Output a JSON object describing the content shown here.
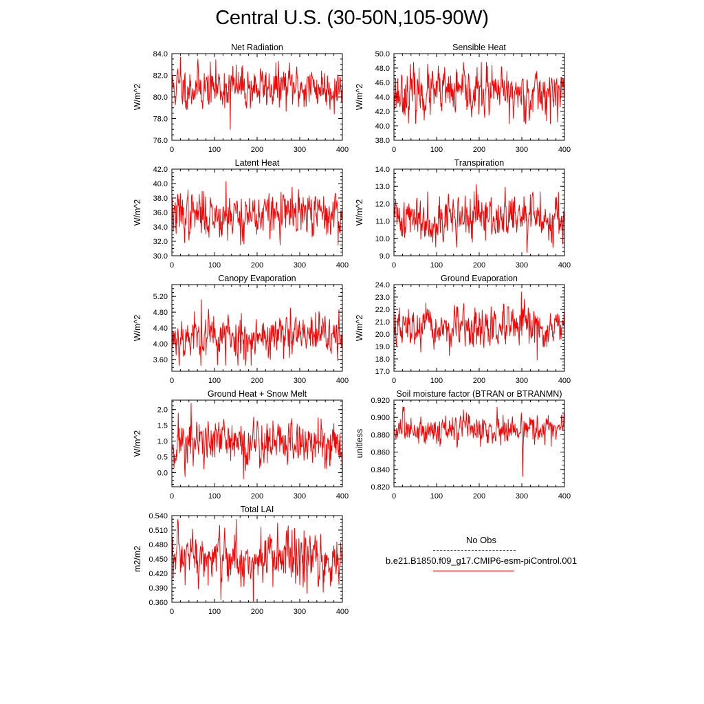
{
  "title": "Central U.S. (30-50N,105-90W)",
  "colors": {
    "model": "#ff0000",
    "obs": "#3b3b6b"
  },
  "legend": {
    "obs_label": "No Obs",
    "model_label": "b.e21.B1850.f09_g17.CMIP6-esm-piControl.001"
  },
  "chart_data": [
    {
      "type": "line",
      "title": "Net Radiation",
      "ylabel": "W/m^2",
      "xlim": [
        0,
        400
      ],
      "ylim": [
        76.0,
        84.0
      ],
      "xticks": [
        0,
        100,
        200,
        300,
        400
      ],
      "yticks": [
        "76.0",
        "78.0",
        "80.0",
        "82.0",
        "84.0"
      ],
      "series": [
        {
          "mean": 80.9,
          "amp": 0.95,
          "min": 77.0,
          "max": 83.7,
          "n": 400,
          "seed": 11
        }
      ]
    },
    {
      "type": "line",
      "title": "Sensible Heat",
      "ylabel": "W/m^2",
      "xlim": [
        0,
        400
      ],
      "ylim": [
        38.0,
        50.0
      ],
      "xticks": [
        0,
        100,
        200,
        300,
        400
      ],
      "yticks": [
        "38.0",
        "40.0",
        "42.0",
        "44.0",
        "46.0",
        "48.0",
        "50.0"
      ],
      "series": [
        {
          "mean": 44.5,
          "amp": 1.55,
          "min": 40.3,
          "max": 48.8,
          "n": 400,
          "seed": 23
        }
      ]
    },
    {
      "type": "line",
      "title": "Latent Heat",
      "ylabel": "W/m^2",
      "xlim": [
        0,
        400
      ],
      "ylim": [
        30.0,
        42.0
      ],
      "xticks": [
        0,
        100,
        200,
        300,
        400
      ],
      "yticks": [
        "30.0",
        "32.0",
        "34.0",
        "36.0",
        "38.0",
        "40.0",
        "42.0"
      ],
      "series": [
        {
          "mean": 35.7,
          "amp": 1.5,
          "min": 31.5,
          "max": 40.3,
          "n": 400,
          "seed": 37
        }
      ]
    },
    {
      "type": "line",
      "title": "Transpiration",
      "ylabel": "W/m^2",
      "xlim": [
        0,
        400
      ],
      "ylim": [
        9.0,
        14.0
      ],
      "xticks": [
        0,
        100,
        200,
        300,
        400
      ],
      "yticks": [
        "9.0",
        "10.0",
        "11.0",
        "12.0",
        "13.0",
        "14.0"
      ],
      "series": [
        {
          "mean": 11.2,
          "amp": 0.62,
          "min": 9.2,
          "max": 13.1,
          "n": 400,
          "seed": 41
        }
      ]
    },
    {
      "type": "line",
      "title": "Canopy Evaporation",
      "ylabel": "W/m^2",
      "xlim": [
        0,
        400
      ],
      "ylim": [
        3.3,
        5.5
      ],
      "xticks": [
        0,
        100,
        200,
        300,
        400
      ],
      "yticks": [
        "3.60",
        "4.00",
        "4.40",
        "4.80",
        "5.20"
      ],
      "ytick_values": [
        3.6,
        4.0,
        4.4,
        4.8,
        5.2
      ],
      "series": [
        {
          "mean": 4.18,
          "amp": 0.28,
          "min": 3.45,
          "max": 5.12,
          "n": 400,
          "seed": 53
        }
      ]
    },
    {
      "type": "line",
      "title": "Ground Evaporation",
      "ylabel": "W/m^2",
      "xlim": [
        0,
        400
      ],
      "ylim": [
        17.0,
        24.0
      ],
      "xticks": [
        0,
        100,
        200,
        300,
        400
      ],
      "yticks": [
        "17.0",
        "18.0",
        "19.0",
        "20.0",
        "21.0",
        "22.0",
        "23.0",
        "24.0"
      ],
      "series": [
        {
          "mean": 20.4,
          "amp": 0.75,
          "min": 17.9,
          "max": 23.4,
          "n": 400,
          "seed": 67
        }
      ]
    },
    {
      "type": "line",
      "title": "Ground Heat + Snow Melt",
      "ylabel": "W/m^2",
      "xlim": [
        0,
        400
      ],
      "ylim": [
        -0.45,
        2.3
      ],
      "xticks": [
        0,
        100,
        200,
        300,
        400
      ],
      "yticks": [
        "0.0",
        "0.5",
        "1.0",
        "1.5",
        "2.0"
      ],
      "ytick_values": [
        0.0,
        0.5,
        1.0,
        1.5,
        2.0
      ],
      "series": [
        {
          "mean": 0.95,
          "amp": 0.38,
          "min": -0.2,
          "max": 2.2,
          "n": 400,
          "seed": 71
        }
      ]
    },
    {
      "type": "line",
      "title": "Soil moisture factor (BTRAN or BTRANMN)",
      "ylabel": "unitless",
      "xlim": [
        0,
        400
      ],
      "ylim": [
        0.82,
        0.92
      ],
      "xticks": [
        0,
        100,
        200,
        300,
        400
      ],
      "yticks": [
        "0.820",
        "0.840",
        "0.860",
        "0.880",
        "0.900",
        "0.920"
      ],
      "series": [
        {
          "mean": 0.886,
          "amp": 0.008,
          "min": 0.832,
          "max": 0.912,
          "n": 400,
          "seed": 83
        }
      ]
    },
    {
      "type": "line",
      "title": "Total LAI",
      "ylabel": "m2/m2",
      "xlim": [
        0,
        400
      ],
      "ylim": [
        0.36,
        0.54
      ],
      "xticks": [
        0,
        100,
        200,
        300,
        400
      ],
      "yticks": [
        "0.360",
        "0.390",
        "0.420",
        "0.450",
        "0.480",
        "0.510",
        "0.540"
      ],
      "series": [
        {
          "mean": 0.448,
          "amp": 0.028,
          "min": 0.362,
          "max": 0.532,
          "n": 400,
          "seed": 97
        }
      ]
    }
  ]
}
